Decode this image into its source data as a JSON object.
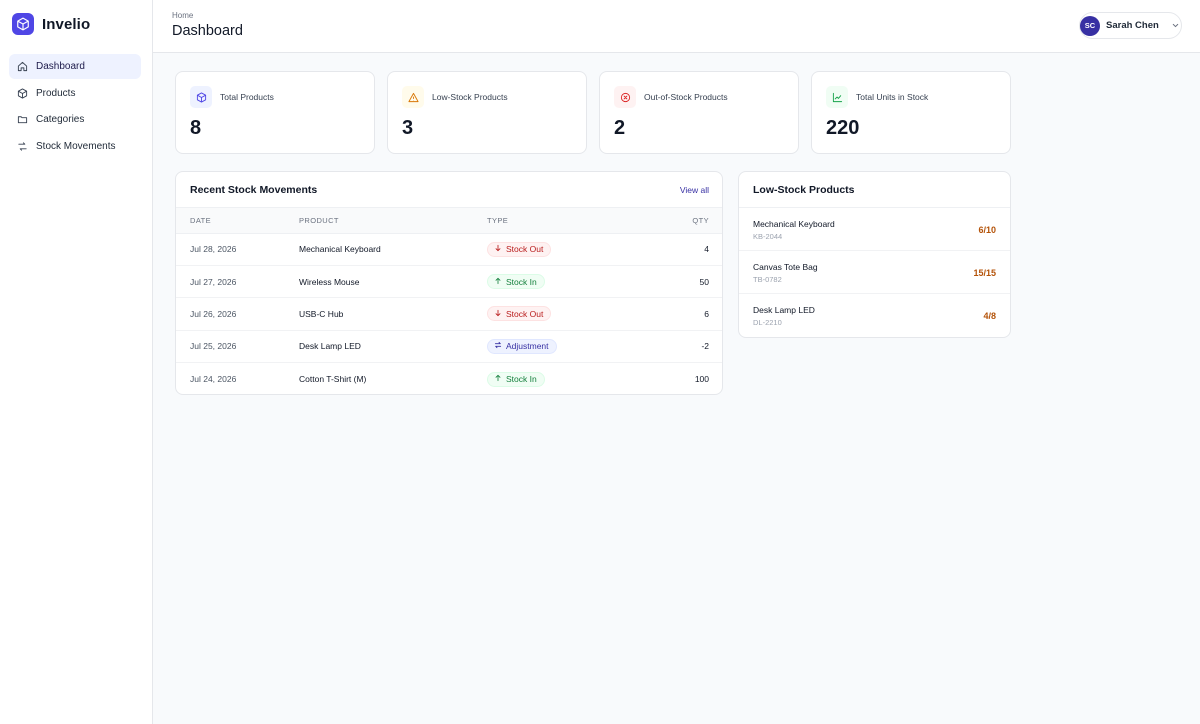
{
  "app": {
    "name": "Invelio"
  },
  "sidebar": {
    "items": [
      {
        "label": "Dashboard",
        "icon": "home-icon",
        "active": true
      },
      {
        "label": "Products",
        "icon": "box-icon",
        "active": false
      },
      {
        "label": "Categories",
        "icon": "folder-icon",
        "active": false
      },
      {
        "label": "Stock Movements",
        "icon": "arrows-swap-icon",
        "active": false
      }
    ]
  },
  "header": {
    "breadcrumb": "Home",
    "title": "Dashboard",
    "user": {
      "initials": "SC",
      "name": "Sarah Chen"
    }
  },
  "stats": [
    {
      "label": "Total Products",
      "value": "8",
      "icon": "box-icon",
      "color": "#4f46e5"
    },
    {
      "label": "Low-Stock Products",
      "value": "3",
      "icon": "warning-icon",
      "color": "#d97706"
    },
    {
      "label": "Out-of-Stock Products",
      "value": "2",
      "icon": "x-circle-icon",
      "color": "#dc2626"
    },
    {
      "label": "Total Units in Stock",
      "value": "220",
      "icon": "chart-line-icon",
      "color": "#16a34a"
    }
  ],
  "recent": {
    "title": "Recent Stock Movements",
    "view_all": "View all",
    "columns": [
      "DATE",
      "PRODUCT",
      "TYPE",
      "QTY"
    ],
    "rows": [
      {
        "date": "Jul 28, 2026",
        "product": "Mechanical Keyboard",
        "type": "Stock Out",
        "qty": "4"
      },
      {
        "date": "Jul 27, 2026",
        "product": "Wireless Mouse",
        "type": "Stock In",
        "qty": "50"
      },
      {
        "date": "Jul 26, 2026",
        "product": "USB-C Hub",
        "type": "Stock Out",
        "qty": "6"
      },
      {
        "date": "Jul 25, 2026",
        "product": "Desk Lamp LED",
        "type": "Adjustment",
        "qty": "-2"
      },
      {
        "date": "Jul 24, 2026",
        "product": "Cotton T-Shirt (M)",
        "type": "Stock In",
        "qty": "100"
      }
    ]
  },
  "low_stock": {
    "title": "Low-Stock Products",
    "items": [
      {
        "name": "Mechanical Keyboard",
        "sku": "KB-2044",
        "count": "6/10"
      },
      {
        "name": "Canvas Tote Bag",
        "sku": "TB-0782",
        "count": "15/15"
      },
      {
        "name": "Desk Lamp LED",
        "sku": "DL-2210",
        "count": "4/8"
      }
    ]
  }
}
